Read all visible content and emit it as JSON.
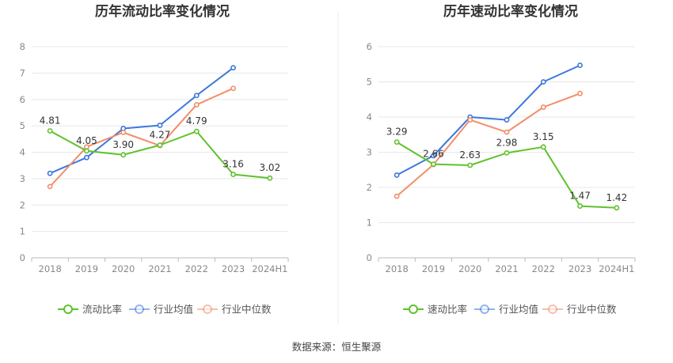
{
  "source": "数据来源：恒生聚源",
  "colors": {
    "company": "#5ec22c",
    "industry_avg": "#3d78db",
    "industry_median": "#f28e6a"
  },
  "chart_data": [
    {
      "type": "line",
      "title": "历年流动比率变化情况",
      "categories": [
        "2018",
        "2019",
        "2020",
        "2021",
        "2022",
        "2023",
        "2024H1"
      ],
      "ylim": [
        0,
        8
      ],
      "yticks": [
        "0",
        "1",
        "2",
        "3",
        "4",
        "5",
        "6",
        "7",
        "8"
      ],
      "grid": true,
      "legend_position": "bottom",
      "series": [
        {
          "name": "流动比率",
          "values": [
            4.81,
            4.05,
            3.9,
            4.27,
            4.79,
            3.16,
            3.02
          ],
          "labels": [
            "4.81",
            "4.05",
            "3.90",
            "4.27",
            "4.79",
            "3.16",
            "3.02"
          ]
        },
        {
          "name": "行业均值",
          "values": [
            3.2,
            3.8,
            4.9,
            5.02,
            6.15,
            7.2,
            null
          ]
        },
        {
          "name": "行业中位数",
          "values": [
            2.7,
            4.2,
            4.75,
            4.25,
            5.8,
            6.42,
            null
          ]
        }
      ]
    },
    {
      "type": "line",
      "title": "历年速动比率变化情况",
      "categories": [
        "2018",
        "2019",
        "2020",
        "2021",
        "2022",
        "2023",
        "2024H1"
      ],
      "ylim": [
        0,
        6
      ],
      "yticks": [
        "0",
        "1",
        "2",
        "3",
        "4",
        "5",
        "6"
      ],
      "grid": true,
      "legend_position": "bottom",
      "series": [
        {
          "name": "速动比率",
          "values": [
            3.29,
            2.66,
            2.63,
            2.98,
            3.15,
            1.47,
            1.42
          ],
          "labels": [
            "3.29",
            "2.66",
            "2.63",
            "2.98",
            "3.15",
            "1.47",
            "1.42"
          ]
        },
        {
          "name": "行业均值",
          "values": [
            2.35,
            2.9,
            4.0,
            3.92,
            5.0,
            5.47,
            null
          ]
        },
        {
          "name": "行业中位数",
          "values": [
            1.75,
            2.65,
            3.92,
            3.57,
            4.28,
            4.67,
            null
          ]
        }
      ]
    }
  ]
}
